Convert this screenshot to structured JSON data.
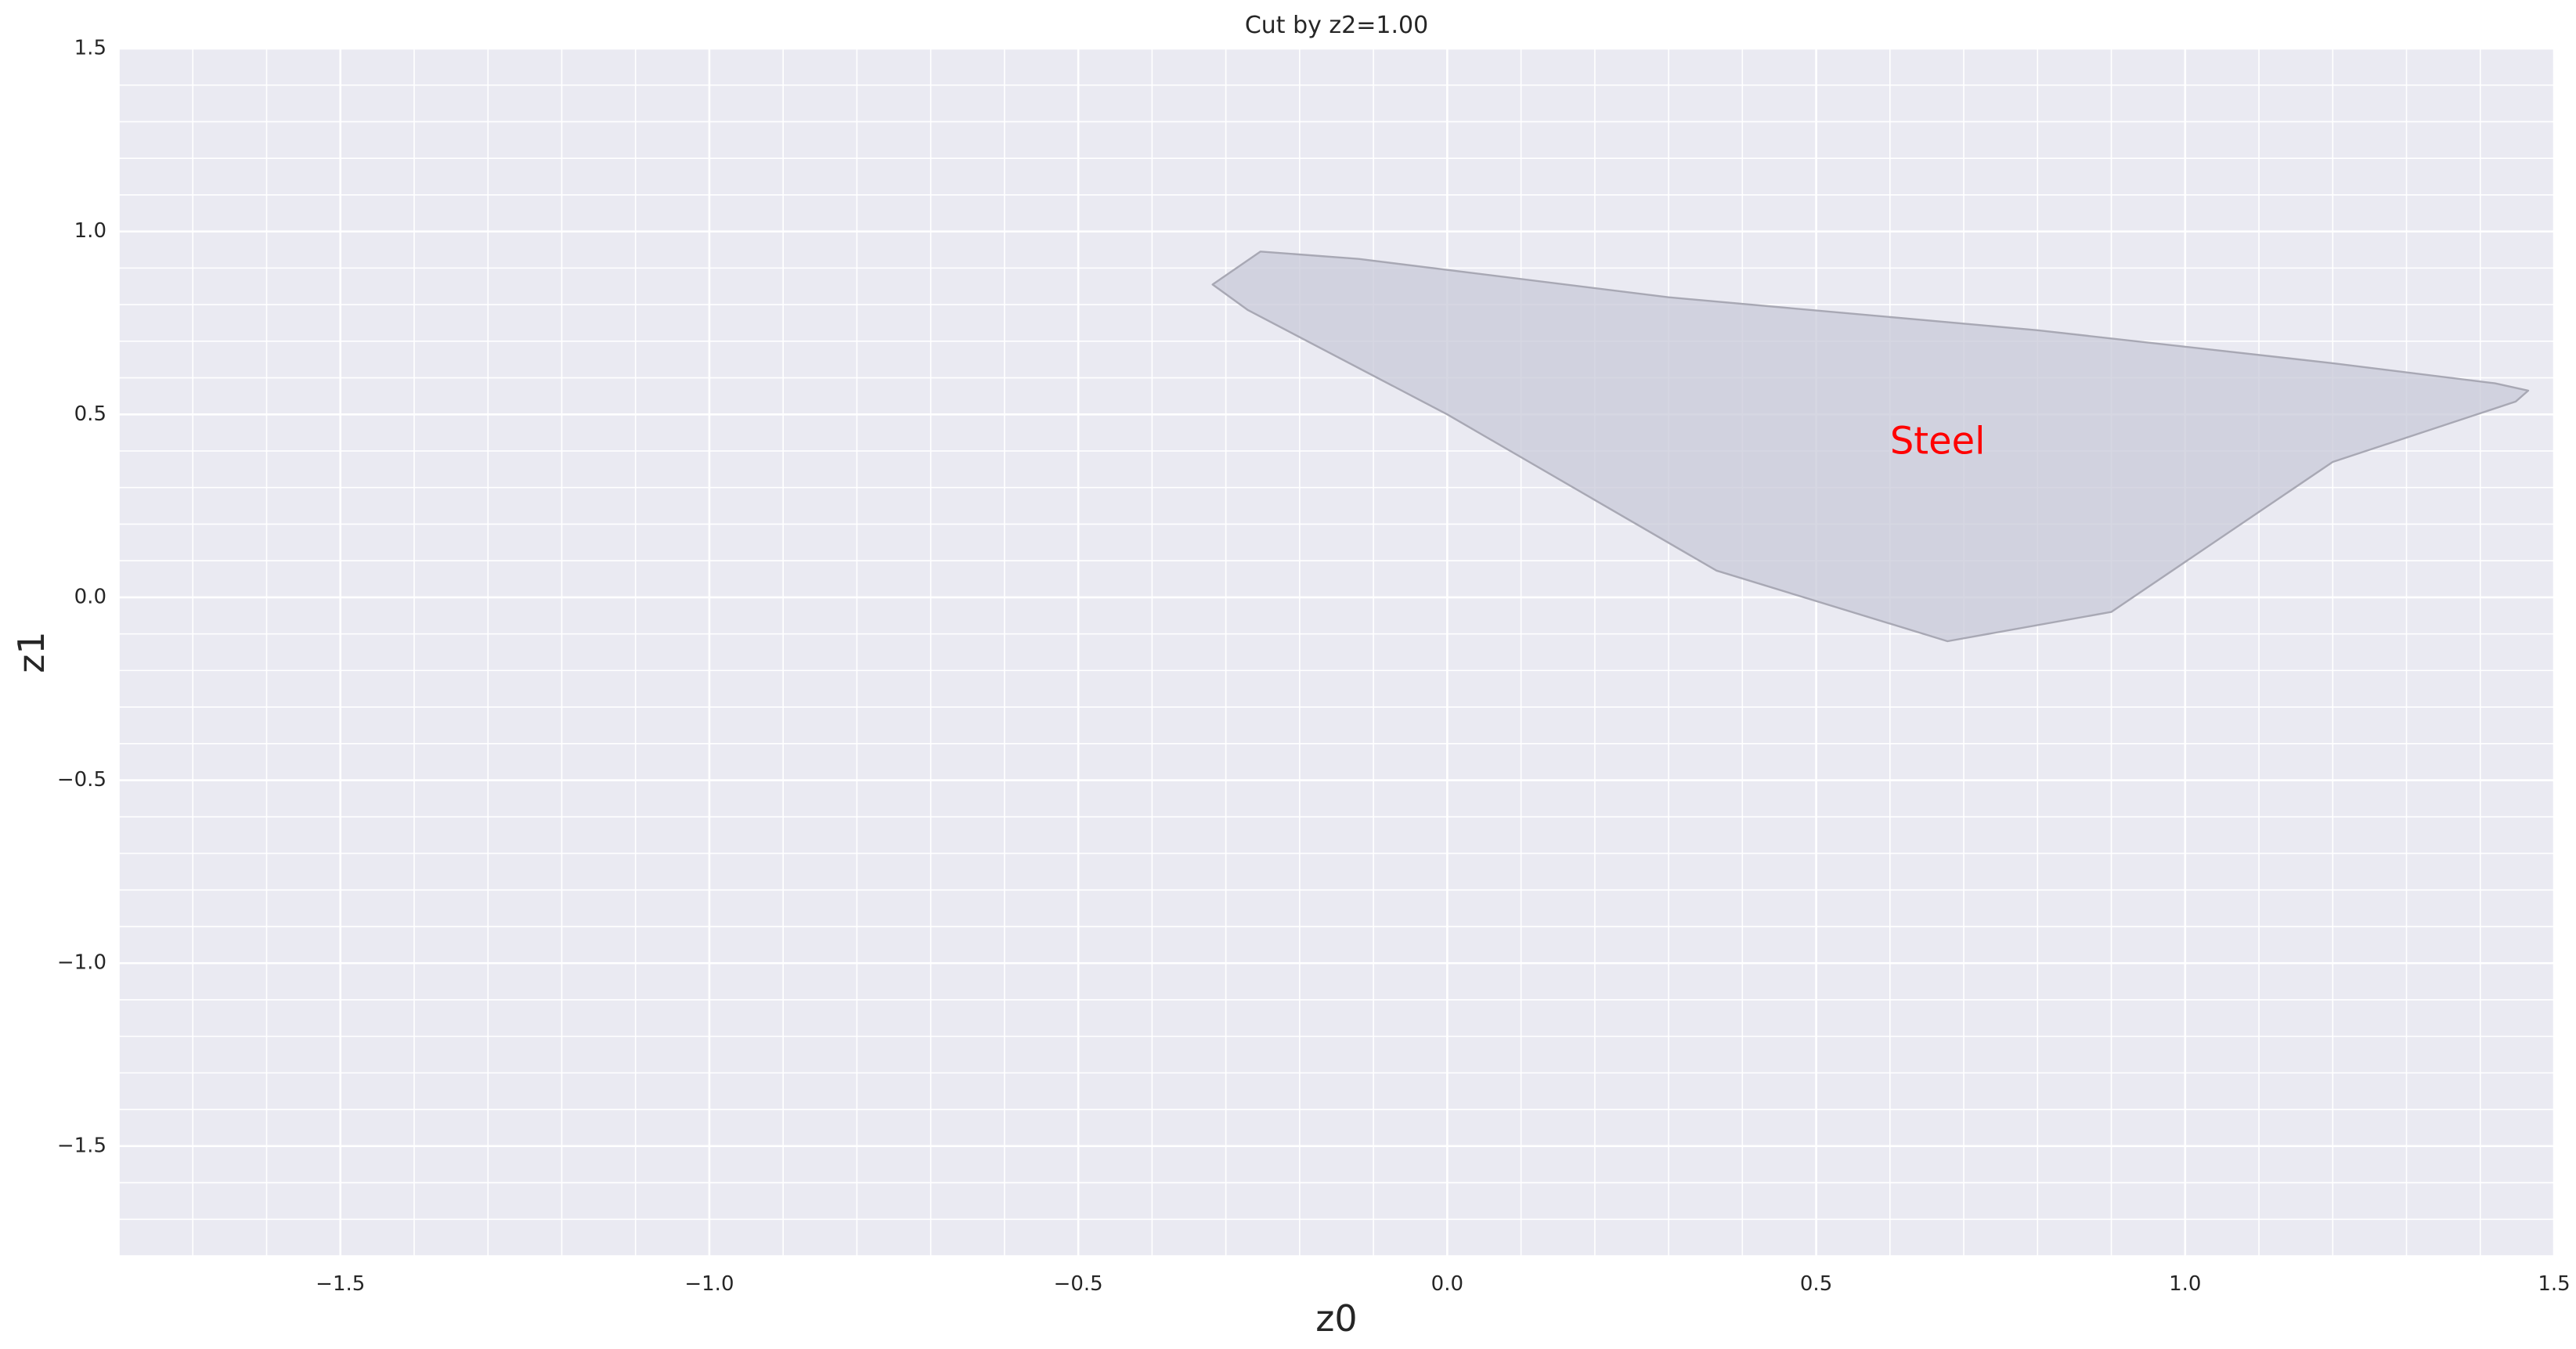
{
  "chart_data": {
    "type": "area",
    "title": "Cut by z2=1.00",
    "xlabel": "z0",
    "ylabel": "z1",
    "xlim": [
      -1.8,
      1.5
    ],
    "ylim": [
      -1.8,
      1.5
    ],
    "xticks": [
      -1.5,
      -1.0,
      -0.5,
      0.0,
      0.5,
      1.0,
      1.5
    ],
    "xtick_labels": [
      "−1.5",
      "−1.0",
      "−0.5",
      "0.0",
      "0.5",
      "1.0",
      "1.5"
    ],
    "yticks": [
      1.5,
      1.0,
      0.5,
      0.0,
      -0.5,
      -1.0,
      -1.5
    ],
    "ytick_labels": [
      "1.5",
      "1.0",
      "0.5",
      "0.0",
      "−0.5",
      "−1.0",
      "−1.5"
    ],
    "minor_grid_step": 0.1,
    "grid": true,
    "background_color": "#eaeaf2",
    "grid_color": "#ffffff",
    "regions": [
      {
        "label": "Steel",
        "label_color": "#ff0000",
        "label_anchor": [
          0.6,
          0.42
        ],
        "fill_color": "#c8cad8",
        "edge_color": "#a8a8b4",
        "polygon": [
          [
            -0.253,
            0.945
          ],
          [
            -0.12,
            0.925
          ],
          [
            0.3,
            0.82
          ],
          [
            0.8,
            0.73
          ],
          [
            1.2,
            0.64
          ],
          [
            1.42,
            0.585
          ],
          [
            1.465,
            0.565
          ],
          [
            1.448,
            0.535
          ],
          [
            1.2,
            0.37
          ],
          [
            0.9,
            -0.04
          ],
          [
            0.678,
            -0.12
          ],
          [
            0.365,
            0.073
          ],
          [
            0.0,
            0.5
          ],
          [
            -0.27,
            0.785
          ],
          [
            -0.318,
            0.855
          ]
        ]
      }
    ]
  }
}
